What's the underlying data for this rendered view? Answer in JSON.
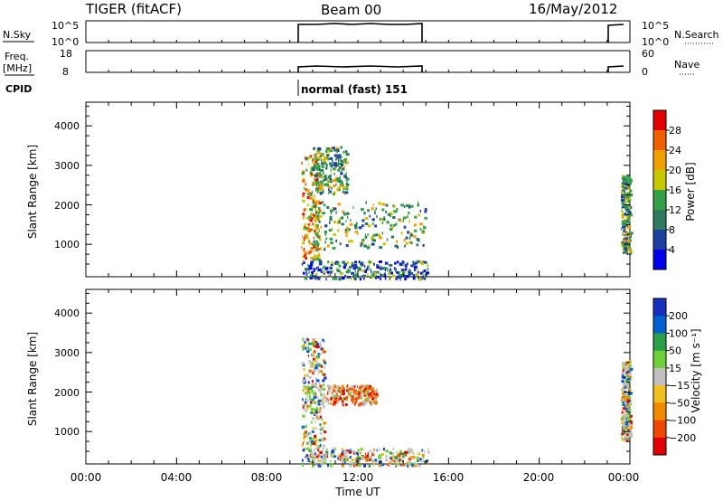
{
  "header": {
    "radar": "TIGER (fitACF)",
    "beam": "Beam 00",
    "date": "16/May/2012"
  },
  "params": {
    "nsky_label": "N.Sky",
    "nsky_ticks": [
      "10^5",
      "10^0"
    ],
    "nsearch_label": "N.Search",
    "nsearch_ticks": [
      "10^5",
      "10^0"
    ],
    "freq_label": "Freq.",
    "freq_unit": "[MHz]",
    "freq_ticks": [
      "18",
      "8"
    ],
    "nave_label": "Nave",
    "nave_ticks": [
      "60",
      "0"
    ],
    "cpid_label": "CPID",
    "cpid_text": "normal (fast) 151"
  },
  "chart_data": [
    {
      "type": "heatmap",
      "title": "",
      "xlabel": "Time UT",
      "ylabel": "Slant Range [km]",
      "x_ticks": [
        "00:00",
        "04:00",
        "08:00",
        "12:00",
        "16:00",
        "20:00",
        "00:00"
      ],
      "y_ticks": [
        "1000",
        "2000",
        "3000",
        "4000"
      ],
      "xlim_hours": [
        0,
        24
      ],
      "ylim_km": [
        180,
        4600
      ],
      "colorbar": {
        "label": "Power [dB]",
        "ticks": [
          "4",
          "8",
          "12",
          "16",
          "20",
          "24",
          "28"
        ],
        "colors": [
          "#0000e8",
          "#1c3fa0",
          "#2e7a5e",
          "#35a04a",
          "#c8c800",
          "#f0a000",
          "#f06000",
          "#e00000"
        ]
      },
      "regions": [
        {
          "t": [
            9.5,
            10.3
          ],
          "r": [
            600,
            3300
          ],
          "level": "high"
        },
        {
          "t": [
            10.0,
            11.5
          ],
          "r": [
            2300,
            3500
          ],
          "level": "mid"
        },
        {
          "t": [
            10.0,
            15.0
          ],
          "r": [
            900,
            2100
          ],
          "level": "mid"
        },
        {
          "t": [
            9.5,
            15.1
          ],
          "r": [
            150,
            600
          ],
          "level": "low"
        },
        {
          "t": [
            23.6,
            24.0
          ],
          "r": [
            800,
            2800
          ],
          "level": "mid"
        }
      ]
    },
    {
      "type": "heatmap",
      "title": "",
      "xlabel": "Time UT",
      "ylabel": "Slant Range [km]",
      "x_ticks": [
        "00:00",
        "04:00",
        "08:00",
        "12:00",
        "16:00",
        "20:00",
        "00:00"
      ],
      "y_ticks": [
        "1000",
        "2000",
        "3000",
        "4000"
      ],
      "xlim_hours": [
        0,
        24
      ],
      "ylim_km": [
        180,
        4600
      ],
      "colorbar": {
        "label": "Velocity [m s⁻¹]",
        "ticks": [
          "200",
          "100",
          "50",
          "15",
          "−15",
          "−50",
          "−100",
          "−200"
        ],
        "colors": [
          "#1830c0",
          "#0060d0",
          "#2aa048",
          "#70d038",
          "#c0c0c0",
          "#f0c020",
          "#f08a00",
          "#f04800",
          "#e00000"
        ]
      },
      "regions": [
        {
          "t": [
            9.5,
            10.5
          ],
          "r": [
            600,
            3400
          ],
          "level": "mixed"
        },
        {
          "t": [
            10.5,
            12.8
          ],
          "r": [
            1700,
            2200
          ],
          "level": "negative"
        },
        {
          "t": [
            9.5,
            15.1
          ],
          "r": [
            150,
            600
          ],
          "level": "mixed"
        },
        {
          "t": [
            23.6,
            24.0
          ],
          "r": [
            800,
            2800
          ],
          "level": "mixed"
        }
      ]
    }
  ]
}
